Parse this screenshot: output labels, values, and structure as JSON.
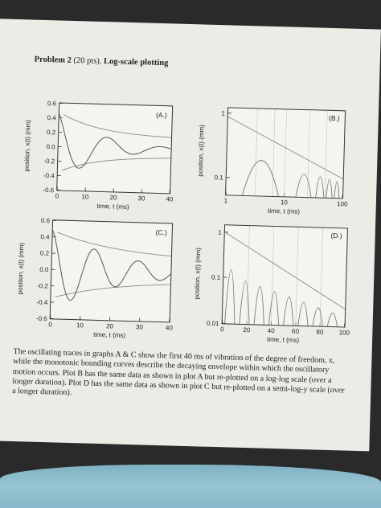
{
  "problem": {
    "heading": "Problem 2",
    "points": "(20 pts).",
    "topic": "Log-scale plotting"
  },
  "panels": {
    "A": {
      "label": "(A.)",
      "x_ticks": [
        "0",
        "10",
        "20",
        "30",
        "40"
      ],
      "y_ticks": [
        "0.6",
        "0.4",
        "0.2",
        "0.0",
        "-0.2",
        "-0.4",
        "-0.6"
      ],
      "xlabel": "time, t (ms)",
      "ylabel": "position, x(t) (mm)"
    },
    "B": {
      "label": "(B.)",
      "x_ticks": [
        "1",
        "10",
        "100"
      ],
      "y_ticks": [
        "1",
        "0.1"
      ],
      "xlabel": "time, t (ms)",
      "ylabel": "position, x(t) (mm)"
    },
    "C": {
      "label": "(C.)",
      "x_ticks": [
        "0",
        "10",
        "20",
        "30",
        "40"
      ],
      "y_ticks": [
        "0.6",
        "0.4",
        "0.2",
        "0.0",
        "-0.2",
        "-0.4",
        "-0.6"
      ],
      "xlabel": "time, t (ms)",
      "ylabel": "position, x(t) (mm)"
    },
    "D": {
      "label": "(D.)",
      "x_ticks": [
        "0",
        "20",
        "40",
        "60",
        "80",
        "100"
      ],
      "y_ticks": [
        "1",
        "0.1",
        "0.01"
      ],
      "xlabel": "time, t (ms)",
      "ylabel": "position, x(t) (mm)"
    }
  },
  "caption": "The oscillating traces in graphs A & C show the first 40 ms of vibration of the degree of freedom, x, while the monotonic bounding curves describe the decaying envelope within which the oscillatory motion occurs. Plot B has the same data as shown in plot A but re-plotted on a log-log scale (over a longer duration). Plot D has the same data as shown in plot C but re-plotted on a semi-log-y scale (over a longer duration)."
}
